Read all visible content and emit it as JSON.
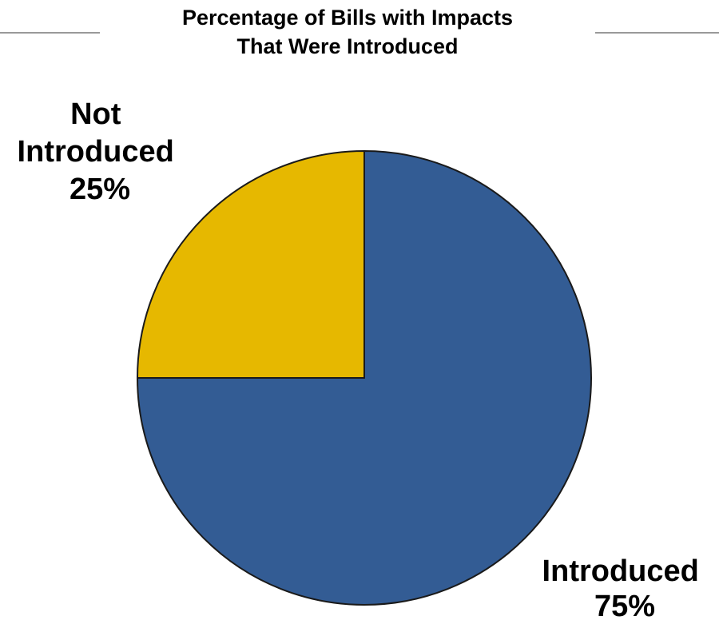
{
  "chart_data": {
    "type": "pie",
    "title_lines": [
      "Percentage of Bills with Impacts",
      "That Were Introduced"
    ],
    "slices": [
      {
        "label_lines": [
          "Introduced",
          "75%"
        ],
        "value": 75,
        "color": "#335C94"
      },
      {
        "label_lines": [
          "Not",
          "Introduced",
          "25%"
        ],
        "value": 25,
        "color": "#E6B800"
      }
    ],
    "start_angle_deg": 0,
    "direction": "clockwise",
    "legend": "none"
  },
  "colors": {
    "outline": "#1a1a1a",
    "rule": "#999999"
  }
}
